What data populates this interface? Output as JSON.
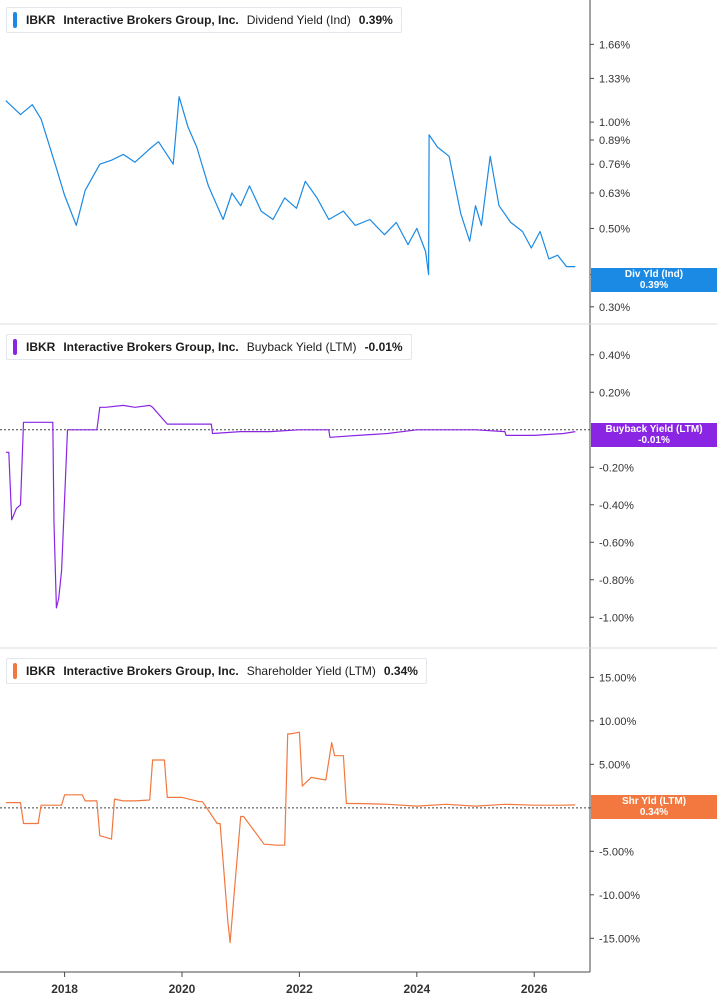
{
  "colors": {
    "dividend": "#1a8ae5",
    "buyback": "#8a26e3",
    "shareholder": "#f2783f",
    "axis": "#4a4a4a",
    "grid": "#d9dce0"
  },
  "x_axis": {
    "ticks": [
      "2018",
      "2020",
      "2022",
      "2024",
      "2026"
    ]
  },
  "panels": [
    {
      "ticker": "IBKR",
      "company": "Interactive Brokers Group, Inc.",
      "metric": "Dividend Yield (Ind)",
      "value": "0.39%",
      "tag_label": "Div Yld (Ind)",
      "tag_value": "0.39%"
    },
    {
      "ticker": "IBKR",
      "company": "Interactive Brokers Group, Inc.",
      "metric": "Buyback Yield (LTM)",
      "value": "-0.01%",
      "tag_label": "Buyback Yield (LTM)",
      "tag_value": "-0.01%"
    },
    {
      "ticker": "IBKR",
      "company": "Interactive Brokers Group, Inc.",
      "metric": "Shareholder Yield (LTM)",
      "value": "0.34%",
      "tag_label": "Shr Yld (LTM)",
      "tag_value": "0.34%"
    }
  ],
  "chart_data": [
    {
      "type": "line",
      "ylabel": "",
      "log_scale": true,
      "yticks": [
        0.3,
        0.37,
        0.5,
        0.63,
        0.76,
        0.89,
        1.0,
        1.33,
        1.66
      ],
      "ytick_labels": [
        "0.30%",
        "0.37%",
        "0.50%",
        "0.63%",
        "0.76%",
        "0.89%",
        "1.00%",
        "1.33%",
        "1.66%"
      ],
      "ylim": [
        0.29,
        2.05
      ],
      "series": [
        {
          "x": [
            2017.0,
            2017.25,
            2017.45,
            2017.6,
            2017.85,
            2018.0,
            2018.2,
            2018.35,
            2018.6,
            2018.8,
            2019.0,
            2019.2,
            2019.45,
            2019.6,
            2019.85,
            2019.95,
            2020.1,
            2020.25,
            2020.45,
            2020.7,
            2020.85,
            2021.0,
            2021.15,
            2021.35,
            2021.55,
            2021.75,
            2021.95,
            2022.1,
            2022.3,
            2022.5,
            2022.75,
            2022.95,
            2023.2,
            2023.45,
            2023.65,
            2023.85,
            2024.0,
            2024.15,
            2024.2,
            2024.21,
            2024.35,
            2024.55,
            2024.75,
            2024.9,
            2025.0,
            2025.1,
            2025.25,
            2025.4,
            2025.6,
            2025.8,
            2025.95,
            2026.1,
            2026.25,
            2026.4,
            2026.55,
            2026.7
          ],
          "y": [
            1.15,
            1.05,
            1.12,
            1.02,
            0.75,
            0.62,
            0.51,
            0.64,
            0.76,
            0.78,
            0.81,
            0.77,
            0.84,
            0.88,
            0.76,
            1.18,
            0.97,
            0.85,
            0.66,
            0.53,
            0.63,
            0.58,
            0.66,
            0.56,
            0.53,
            0.61,
            0.57,
            0.68,
            0.61,
            0.53,
            0.56,
            0.51,
            0.53,
            0.48,
            0.52,
            0.45,
            0.5,
            0.43,
            0.37,
            0.92,
            0.85,
            0.8,
            0.55,
            0.46,
            0.58,
            0.51,
            0.8,
            0.58,
            0.52,
            0.49,
            0.44,
            0.49,
            0.41,
            0.42,
            0.39,
            0.39
          ]
        }
      ]
    },
    {
      "type": "line",
      "ylabel": "",
      "yticks": [
        -1.0,
        -0.8,
        -0.6,
        -0.4,
        -0.2,
        0.2,
        0.4
      ],
      "ytick_labels": [
        "-1.00%",
        "-0.80%",
        "-0.60%",
        "-0.40%",
        "-0.20%",
        "0.20%",
        "0.40%"
      ],
      "ylim": [
        -1.1,
        0.5
      ],
      "series": [
        {
          "x": [
            2017.0,
            2017.05,
            2017.1,
            2017.18,
            2017.25,
            2017.3,
            2017.35,
            2017.8,
            2017.82,
            2017.86,
            2017.9,
            2017.95,
            2018.05,
            2018.1,
            2018.2,
            2018.3,
            2018.5,
            2018.55,
            2018.6,
            2018.7,
            2019.0,
            2019.2,
            2019.45,
            2019.5,
            2019.75,
            2020.0,
            2020.5,
            2020.52,
            2021.0,
            2021.5,
            2022.0,
            2022.5,
            2022.52,
            2023.0,
            2023.5,
            2024.0,
            2024.5,
            2025.0,
            2025.5,
            2025.52,
            2026.0,
            2026.5,
            2026.7
          ],
          "y": [
            -0.12,
            -0.12,
            -0.48,
            -0.42,
            -0.4,
            0.04,
            0.04,
            0.04,
            -0.5,
            -0.95,
            -0.9,
            -0.75,
            0.0,
            0.0,
            0.0,
            0.0,
            0.0,
            0.0,
            0.12,
            0.12,
            0.13,
            0.12,
            0.13,
            0.12,
            0.03,
            0.03,
            0.03,
            -0.02,
            -0.01,
            -0.01,
            0.0,
            0.0,
            -0.04,
            -0.03,
            -0.02,
            0.0,
            0.0,
            0.0,
            -0.01,
            -0.03,
            -0.03,
            -0.02,
            -0.01
          ]
        }
      ]
    },
    {
      "type": "line",
      "ylabel": "",
      "yticks": [
        -15.0,
        -10.0,
        -5.0,
        0.0,
        5.0,
        10.0,
        15.0
      ],
      "ytick_labels": [
        "-15.00%",
        "-10.00%",
        "-5.00%",
        "0.00%",
        "5.00%",
        "10.00%",
        "15.00%"
      ],
      "ylim": [
        -17.5,
        17.0
      ],
      "series": [
        {
          "x": [
            2017.0,
            2017.25,
            2017.3,
            2017.55,
            2017.6,
            2017.95,
            2018.0,
            2018.3,
            2018.35,
            2018.55,
            2018.6,
            2018.8,
            2018.85,
            2019.0,
            2019.2,
            2019.45,
            2019.5,
            2019.7,
            2019.75,
            2019.85,
            2020.0,
            2020.3,
            2020.35,
            2020.6,
            2020.65,
            2020.78,
            2020.82,
            2020.9,
            2021.0,
            2021.05,
            2021.4,
            2021.45,
            2021.6,
            2021.75,
            2021.8,
            2021.85,
            2022.0,
            2022.05,
            2022.2,
            2022.45,
            2022.55,
            2022.6,
            2022.75,
            2022.8,
            2023.0,
            2023.5,
            2024.0,
            2024.5,
            2025.0,
            2025.5,
            2026.0,
            2026.5,
            2026.7
          ],
          "y": [
            0.6,
            0.6,
            -1.8,
            -1.8,
            0.3,
            0.3,
            1.5,
            1.5,
            0.8,
            0.8,
            -3.2,
            -3.6,
            1.0,
            0.8,
            0.8,
            0.9,
            5.5,
            5.5,
            1.2,
            1.2,
            1.2,
            0.7,
            0.7,
            -1.8,
            -1.8,
            -13.0,
            -15.5,
            -9.0,
            -1.0,
            -1.0,
            -4.2,
            -4.2,
            -4.3,
            -4.3,
            8.5,
            8.5,
            8.7,
            2.5,
            3.5,
            3.2,
            7.5,
            6.0,
            6.0,
            0.5,
            0.5,
            0.4,
            0.2,
            0.4,
            0.2,
            0.4,
            0.3,
            0.3,
            0.34
          ]
        }
      ]
    }
  ]
}
